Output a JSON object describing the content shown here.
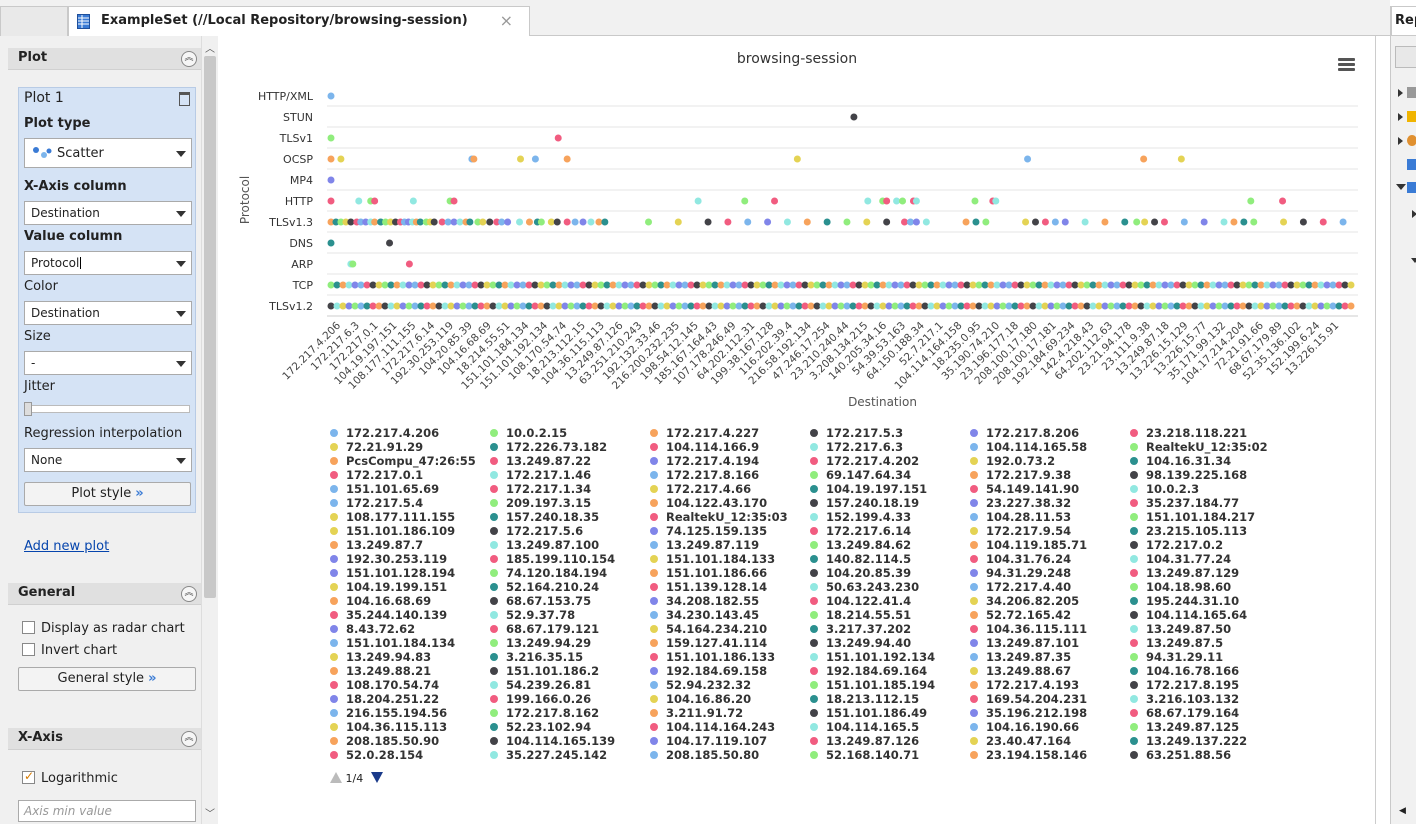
{
  "tab": {
    "title": "ExampleSet (//Local Repository/browsing-session)",
    "close": "×"
  },
  "right_panel": {
    "title": "Rep"
  },
  "left_panel": {
    "plot_section": {
      "title": "Plot"
    },
    "plot1": {
      "title": "Plot 1",
      "plot_type_label": "Plot type",
      "plot_type_value": "Scatter",
      "x_axis_label": "X-Axis column",
      "x_axis_value": "Destination",
      "value_column_label": "Value column",
      "value_column_value": "Protocol",
      "color_label": "Color",
      "color_value": "Destination",
      "size_label": "Size",
      "size_value": "-",
      "jitter_label": "Jitter",
      "regression_label": "Regression interpolation",
      "regression_value": "None",
      "plot_style_button": "Plot style"
    },
    "add_new_plot": "Add new plot",
    "general_section": {
      "title": "General",
      "radar": "Display as radar chart",
      "invert": "Invert chart",
      "style_button": "General style"
    },
    "xaxis_section": {
      "title": "X-Axis",
      "logarithmic": "Logarithmic",
      "logarithmic_checked": true,
      "axis_min_placeholder": "Axis min value"
    }
  },
  "chart_data": {
    "type": "scatter",
    "title": "browsing-session",
    "xlabel": "Destination",
    "ylabel": "Protocol",
    "categories_y": [
      "HTTP/XML",
      "STUN",
      "TLSv1",
      "OCSP",
      "MP4",
      "HTTP",
      "TLSv1.3",
      "DNS",
      "ARP",
      "TCP",
      "TLSv1.2"
    ],
    "x_tick_labels": [
      "172.217.4.206",
      "172.217.6.3",
      "172.217.0.1",
      "104.19.197.151",
      "108.177.111.155",
      "172.217.6.14",
      "192.30.253.119",
      "104.20.85.39",
      "104.16.68.69",
      "18.214.55.51",
      "151.101.184.134",
      "151.101.192.134",
      "108.170.54.74",
      "18.213.112.15",
      "104.36.115.113",
      "13.249.87.126",
      "63.251.210.243",
      "192.132.33.46",
      "216.200.232.235",
      "198.54.12.145",
      "185.167.164.43",
      "107.178.246.49",
      "64.202.112.31",
      "199.38.167.128",
      "116.202.39.4",
      "216.58.192.134",
      "47.246.17.254",
      "23.210.240.44",
      "3.208.134.215",
      "140.205.34.16",
      "54.39.53.163",
      "64.150.188.34",
      "52.7.217.1",
      "104.114.164.158",
      "18.235.0.95",
      "35.190.74.210",
      "23.196.177.18",
      "208.100.17.180",
      "208.100.17.181",
      "192.184.69.234",
      "142.4.218.43",
      "64.202.112.63",
      "23.21.94.178",
      "23.111.9.38",
      "13.249.87.18",
      "13.226.15.129",
      "13.226.15.77",
      "35.171.99.132",
      "104.17.214.204",
      "72.21.91.66",
      "68.67.179.89",
      "52.35.136.102",
      "152.199.6.24",
      "13.226.15.91"
    ],
    "points": {
      "HTTP/XML": [
        0
      ],
      "STUN": [
        527
      ],
      "TLSv1": [
        0,
        229
      ],
      "OCSP": [
        0,
        10,
        142,
        144,
        191,
        206,
        238,
        470,
        702,
        819,
        857
      ],
      "MP4": [
        0
      ],
      "HTTP": [
        0,
        28,
        40,
        44,
        83,
        120,
        124,
        370,
        417,
        447,
        541,
        556,
        560,
        570,
        576,
        587,
        590,
        649,
        667,
        670,
        927,
        959
      ],
      "DNS": [
        0,
        59
      ],
      "ARP": [
        20,
        22,
        79
      ]
    },
    "legend_page": "1/4",
    "legend": [
      [
        [
          "172.217.4.206",
          "#7cb5ec"
        ],
        [
          "72.21.91.29",
          "#e4d354"
        ],
        [
          "PcsCompu_47:26:55",
          "#f7a35c"
        ],
        [
          "172.217.0.1",
          "#f15c80"
        ],
        [
          "151.101.65.69",
          "#7cb5ec"
        ],
        [
          "172.217.5.4",
          "#7cb5ec"
        ],
        [
          "108.177.111.155",
          "#e4d354"
        ],
        [
          "151.101.186.109",
          "#e4d354"
        ],
        [
          "13.249.87.7",
          "#f7a35c"
        ],
        [
          "192.30.253.119",
          "#8085e9"
        ],
        [
          "151.101.128.194",
          "#8085e9"
        ],
        [
          "104.19.199.151",
          "#e4d354"
        ],
        [
          "104.16.68.69",
          "#f7a35c"
        ],
        [
          "35.244.140.139",
          "#f15c80"
        ],
        [
          "8.43.72.62",
          "#8085e9"
        ],
        [
          "151.101.184.134",
          "#7cb5ec"
        ],
        [
          "13.249.94.83",
          "#e4d354"
        ],
        [
          "13.249.88.21",
          "#f7a35c"
        ],
        [
          "108.170.54.74",
          "#f15c80"
        ],
        [
          "18.204.251.22",
          "#8085e9"
        ],
        [
          "216.155.194.56",
          "#7cb5ec"
        ],
        [
          "104.36.115.113",
          "#e4d354"
        ],
        [
          "208.185.50.90",
          "#f7a35c"
        ],
        [
          "52.0.28.154",
          "#f15c80"
        ]
      ],
      [
        [
          "10.0.2.15",
          "#90ed7d"
        ],
        [
          "172.226.73.182",
          "#2b908f"
        ],
        [
          "13.249.87.22",
          "#f15c80"
        ],
        [
          "172.217.1.46",
          "#91e8e1"
        ],
        [
          "172.217.1.34",
          "#f15c80"
        ],
        [
          "209.197.3.15",
          "#90ed7d"
        ],
        [
          "157.240.18.35",
          "#2b908f"
        ],
        [
          "172.217.5.6",
          "#434348"
        ],
        [
          "13.249.87.100",
          "#91e8e1"
        ],
        [
          "185.199.110.154",
          "#f15c80"
        ],
        [
          "74.120.184.194",
          "#90ed7d"
        ],
        [
          "52.164.210.24",
          "#2b908f"
        ],
        [
          "68.67.153.75",
          "#434348"
        ],
        [
          "52.9.37.78",
          "#91e8e1"
        ],
        [
          "68.67.179.121",
          "#f15c80"
        ],
        [
          "13.249.94.29",
          "#90ed7d"
        ],
        [
          "3.216.35.15",
          "#2b908f"
        ],
        [
          "151.101.186.2",
          "#434348"
        ],
        [
          "54.239.26.81",
          "#91e8e1"
        ],
        [
          "199.166.0.26",
          "#f15c80"
        ],
        [
          "172.217.8.162",
          "#90ed7d"
        ],
        [
          "52.23.102.94",
          "#2b908f"
        ],
        [
          "104.114.165.139",
          "#434348"
        ],
        [
          "35.227.245.142",
          "#91e8e1"
        ]
      ],
      [
        [
          "172.217.4.227",
          "#f7a35c"
        ],
        [
          "104.114.166.9",
          "#f15c80"
        ],
        [
          "172.217.4.194",
          "#8085e9"
        ],
        [
          "172.217.8.166",
          "#7cb5ec"
        ],
        [
          "172.217.4.66",
          "#e4d354"
        ],
        [
          "104.122.43.170",
          "#f7a35c"
        ],
        [
          "RealtekU_12:35:03",
          "#f15c80"
        ],
        [
          "74.125.159.135",
          "#8085e9"
        ],
        [
          "13.249.87.119",
          "#7cb5ec"
        ],
        [
          "151.101.184.133",
          "#e4d354"
        ],
        [
          "151.101.186.66",
          "#f7a35c"
        ],
        [
          "151.139.128.14",
          "#f15c80"
        ],
        [
          "34.208.182.55",
          "#8085e9"
        ],
        [
          "34.230.143.45",
          "#7cb5ec"
        ],
        [
          "54.164.234.210",
          "#e4d354"
        ],
        [
          "159.127.41.114",
          "#f7a35c"
        ],
        [
          "151.101.186.133",
          "#f15c80"
        ],
        [
          "192.184.69.158",
          "#8085e9"
        ],
        [
          "52.94.232.32",
          "#7cb5ec"
        ],
        [
          "104.16.86.20",
          "#e4d354"
        ],
        [
          "3.211.91.72",
          "#f7a35c"
        ],
        [
          "104.114.164.243",
          "#f15c80"
        ],
        [
          "104.17.119.107",
          "#8085e9"
        ],
        [
          "208.185.50.80",
          "#7cb5ec"
        ]
      ],
      [
        [
          "172.217.5.3",
          "#434348"
        ],
        [
          "172.217.6.3",
          "#91e8e1"
        ],
        [
          "172.217.4.202",
          "#f15c80"
        ],
        [
          "69.147.64.34",
          "#90ed7d"
        ],
        [
          "104.19.197.151",
          "#2b908f"
        ],
        [
          "157.240.18.19",
          "#434348"
        ],
        [
          "152.199.4.33",
          "#91e8e1"
        ],
        [
          "172.217.6.14",
          "#f15c80"
        ],
        [
          "13.249.84.62",
          "#90ed7d"
        ],
        [
          "140.82.114.5",
          "#2b908f"
        ],
        [
          "104.20.85.39",
          "#434348"
        ],
        [
          "50.63.243.230",
          "#91e8e1"
        ],
        [
          "104.122.41.4",
          "#f15c80"
        ],
        [
          "18.214.55.51",
          "#90ed7d"
        ],
        [
          "3.217.37.202",
          "#2b908f"
        ],
        [
          "13.249.94.40",
          "#434348"
        ],
        [
          "151.101.192.134",
          "#91e8e1"
        ],
        [
          "192.184.69.164",
          "#f15c80"
        ],
        [
          "151.101.185.194",
          "#90ed7d"
        ],
        [
          "18.213.112.15",
          "#2b908f"
        ],
        [
          "151.101.186.49",
          "#434348"
        ],
        [
          "104.114.165.5",
          "#91e8e1"
        ],
        [
          "13.249.87.126",
          "#f15c80"
        ],
        [
          "52.168.140.71",
          "#90ed7d"
        ]
      ],
      [
        [
          "172.217.8.206",
          "#8085e9"
        ],
        [
          "104.114.165.58",
          "#7cb5ec"
        ],
        [
          "192.0.73.2",
          "#e4d354"
        ],
        [
          "172.217.9.38",
          "#f7a35c"
        ],
        [
          "54.149.141.90",
          "#f15c80"
        ],
        [
          "23.227.38.32",
          "#8085e9"
        ],
        [
          "104.28.11.53",
          "#7cb5ec"
        ],
        [
          "172.217.9.54",
          "#e4d354"
        ],
        [
          "104.119.185.71",
          "#f7a35c"
        ],
        [
          "104.31.76.24",
          "#f15c80"
        ],
        [
          "94.31.29.248",
          "#8085e9"
        ],
        [
          "172.217.4.40",
          "#7cb5ec"
        ],
        [
          "34.206.82.205",
          "#e4d354"
        ],
        [
          "52.72.165.42",
          "#f7a35c"
        ],
        [
          "104.36.115.111",
          "#f15c80"
        ],
        [
          "13.249.87.101",
          "#8085e9"
        ],
        [
          "13.249.87.35",
          "#7cb5ec"
        ],
        [
          "13.249.88.67",
          "#e4d354"
        ],
        [
          "172.217.4.193",
          "#f7a35c"
        ],
        [
          "169.54.204.231",
          "#f15c80"
        ],
        [
          "35.196.212.198",
          "#8085e9"
        ],
        [
          "104.16.190.66",
          "#7cb5ec"
        ],
        [
          "23.40.47.164",
          "#e4d354"
        ],
        [
          "23.194.158.146",
          "#f7a35c"
        ]
      ],
      [
        [
          "23.218.118.221",
          "#f15c80"
        ],
        [
          "RealtekU_12:35:02",
          "#90ed7d"
        ],
        [
          "104.16.31.34",
          "#2b908f"
        ],
        [
          "98.139.225.168",
          "#434348"
        ],
        [
          "10.0.2.3",
          "#91e8e1"
        ],
        [
          "35.237.184.77",
          "#f15c80"
        ],
        [
          "151.101.184.217",
          "#90ed7d"
        ],
        [
          "23.215.105.113",
          "#2b908f"
        ],
        [
          "172.217.0.2",
          "#434348"
        ],
        [
          "104.31.77.24",
          "#91e8e1"
        ],
        [
          "13.249.87.129",
          "#f15c80"
        ],
        [
          "104.18.98.60",
          "#90ed7d"
        ],
        [
          "195.244.31.10",
          "#2b908f"
        ],
        [
          "104.114.165.64",
          "#434348"
        ],
        [
          "13.249.87.50",
          "#91e8e1"
        ],
        [
          "13.249.87.5",
          "#f15c80"
        ],
        [
          "94.31.29.11",
          "#90ed7d"
        ],
        [
          "104.16.78.166",
          "#2b908f"
        ],
        [
          "172.217.8.195",
          "#434348"
        ],
        [
          "3.216.103.132",
          "#91e8e1"
        ],
        [
          "68.67.179.164",
          "#f15c80"
        ],
        [
          "13.249.87.125",
          "#90ed7d"
        ],
        [
          "13.249.137.222",
          "#2b908f"
        ],
        [
          "63.251.88.56",
          "#434348"
        ]
      ]
    ]
  },
  "palette": [
    "#7cb5ec",
    "#434348",
    "#90ed7d",
    "#f7a35c",
    "#8085e9",
    "#f15c80",
    "#e4d354",
    "#2b908f",
    "#91e8e1"
  ]
}
